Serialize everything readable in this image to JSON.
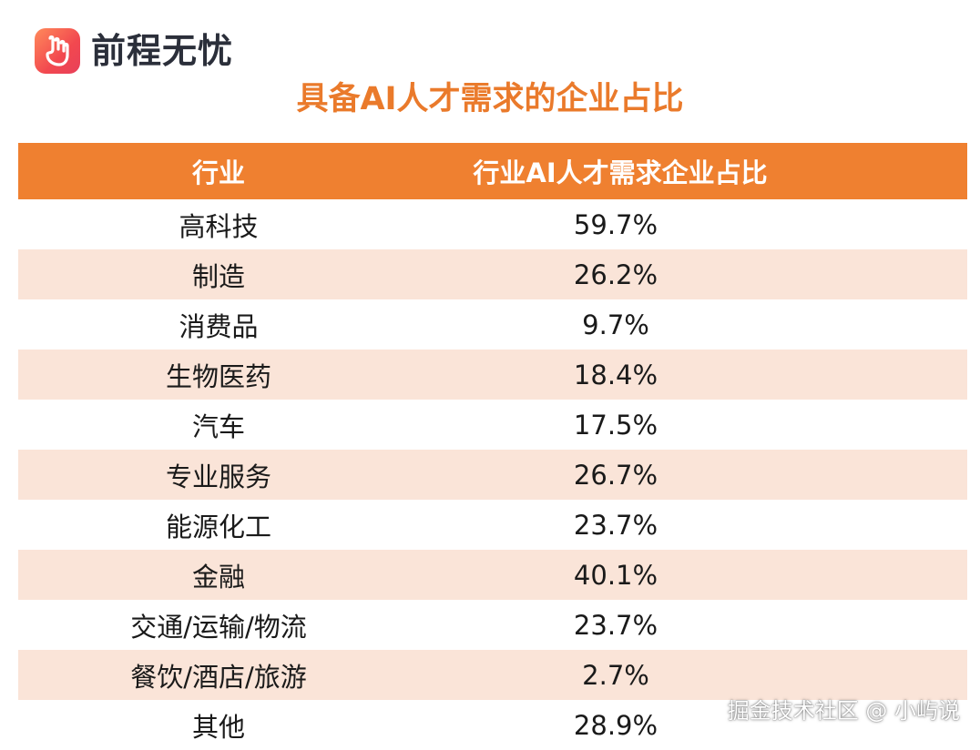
{
  "brand": {
    "name": "前程无忧"
  },
  "title": "具备AI人才需求的企业占比",
  "table": {
    "headers": {
      "industry": "行业",
      "ratio": "行业AI人才需求企业占比"
    },
    "rows": [
      {
        "industry": "高科技",
        "ratio": "59.7%"
      },
      {
        "industry": "制造",
        "ratio": "26.2%"
      },
      {
        "industry": "消费品",
        "ratio": "9.7%"
      },
      {
        "industry": "生物医药",
        "ratio": "18.4%"
      },
      {
        "industry": "汽车",
        "ratio": "17.5%"
      },
      {
        "industry": "专业服务",
        "ratio": "26.7%"
      },
      {
        "industry": "能源化工",
        "ratio": "23.7%"
      },
      {
        "industry": "金融",
        "ratio": "40.1%"
      },
      {
        "industry": "交通/运输/物流",
        "ratio": "23.7%"
      },
      {
        "industry": "餐饮/酒店/旅游",
        "ratio": "2.7%"
      },
      {
        "industry": "其他",
        "ratio": "28.9%"
      }
    ]
  },
  "watermark": "掘金技术社区 @ 小屿说",
  "colors": {
    "accent": "#ef8030",
    "title": "#ea7a2b",
    "stripe": "#fae4d8"
  }
}
